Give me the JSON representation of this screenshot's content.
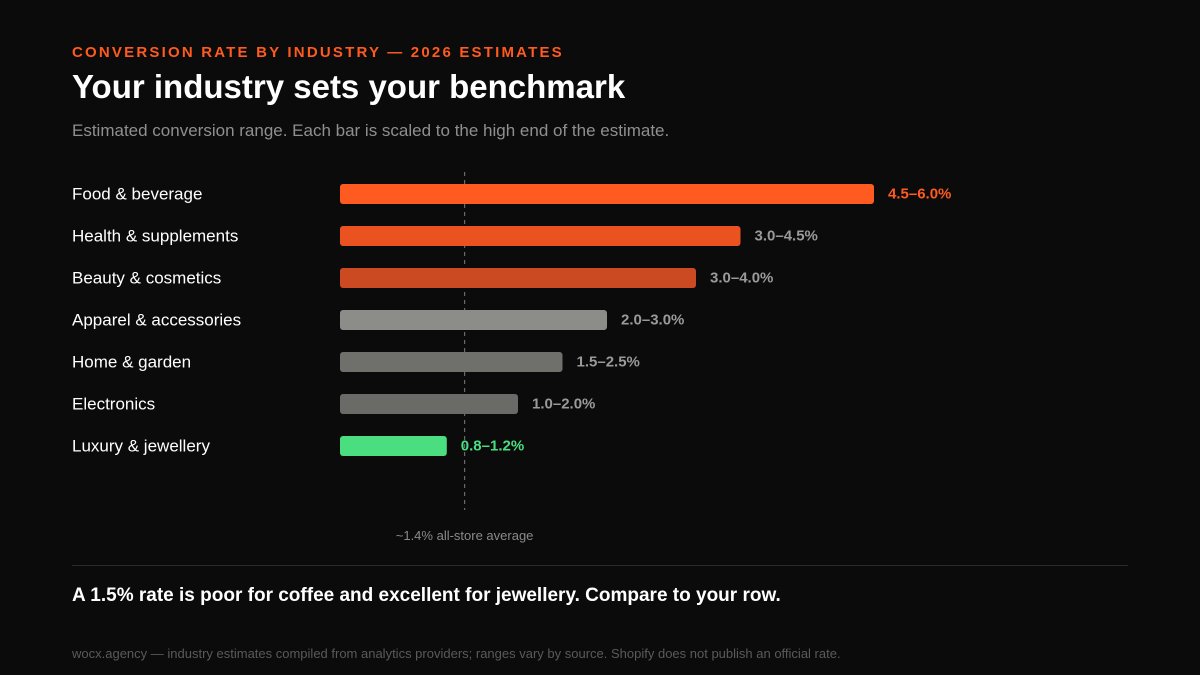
{
  "header": {
    "eyebrow": "CONVERSION RATE BY INDUSTRY — 2026 ESTIMATES",
    "title": "Your industry sets your benchmark",
    "subtitle": "Estimated conversion range. Each bar is scaled to the high end of the estimate."
  },
  "chart_data": {
    "type": "bar",
    "orientation": "horizontal",
    "categories": [
      "Food & beverage",
      "Health & supplements",
      "Beauty & cosmetics",
      "Apparel & accessories",
      "Home & garden",
      "Electronics",
      "Luxury & jewellery"
    ],
    "values": [
      6.0,
      4.5,
      4.0,
      3.0,
      2.5,
      2.0,
      1.2
    ],
    "ranges": [
      [
        4.5,
        6.0
      ],
      [
        3.0,
        4.5
      ],
      [
        3.0,
        4.0
      ],
      [
        2.0,
        3.0
      ],
      [
        1.5,
        2.5
      ],
      [
        1.0,
        2.0
      ],
      [
        0.8,
        1.2
      ]
    ],
    "data_labels": [
      "4.5–6.0%",
      "3.0–4.5%",
      "3.0–4.0%",
      "2.0–3.0%",
      "1.5–2.5%",
      "1.0–2.0%",
      "0.8–1.2%"
    ],
    "bar_colors": [
      "#ff5a1f",
      "#ea5220",
      "#cc4a22",
      "#8c8c88",
      "#6f6f6c",
      "#6a6a67",
      "#4ade80"
    ],
    "label_colors": [
      "#ff5a1f",
      "#9a9a9a",
      "#9a9a9a",
      "#9a9a9a",
      "#9a9a9a",
      "#9a9a9a",
      "#4ade80"
    ],
    "xlim": [
      0,
      6.0
    ],
    "grid": false,
    "reference_line": {
      "value": 1.4,
      "label": "~1.4% all-store average"
    }
  },
  "takeaway": "A 1.5% rate is poor for coffee and excellent for jewellery. Compare to your row.",
  "footnote": "wocx.agency — industry estimates compiled from analytics providers; ranges vary by source. Shopify does not publish an official rate.",
  "colors": {
    "background": "#0b0b0b",
    "accent": "#ff5a1f",
    "positive": "#4ade80",
    "muted_text": "#8f8f8f"
  }
}
